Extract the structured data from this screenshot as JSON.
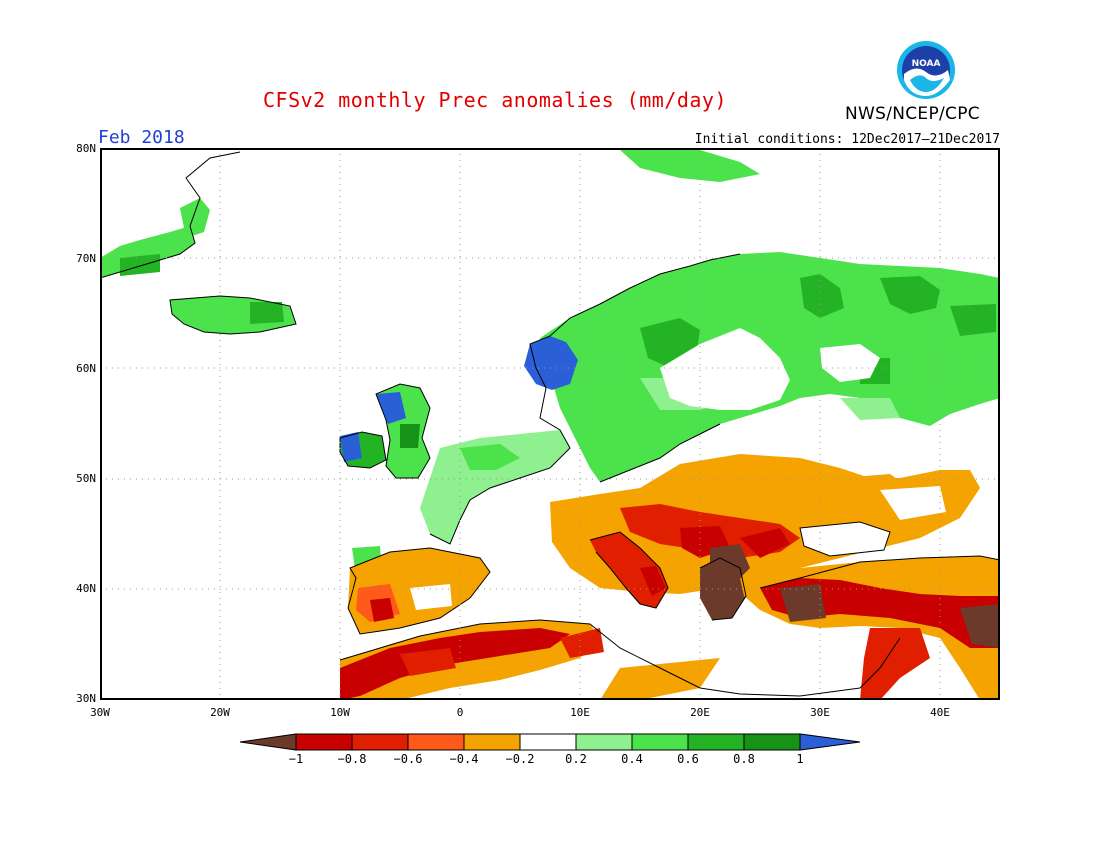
{
  "header": {
    "title": "CFSv2 monthly Prec anomalies (mm/day)",
    "month": "Feb 2018",
    "initial_conditions": "Initial conditions: 12Dec2017–21Dec2017",
    "agency": "NWS/NCEP/CPC",
    "logo_text": "NOAA"
  },
  "map": {
    "region": "Europe",
    "lon_range": [
      -30,
      45
    ],
    "lat_range": [
      30,
      80
    ],
    "lat_labels": [
      "80N",
      "70N",
      "60N",
      "50N",
      "40N",
      "30N"
    ],
    "lon_labels": [
      "30W",
      "20W",
      "10W",
      "0",
      "10E",
      "20E",
      "30E",
      "40E"
    ],
    "grid": "dotted",
    "anomaly_regions": [
      {
        "name": "Scandinavia and NW Russia",
        "category": "0.2 to 0.6",
        "color": "#4ce24c"
      },
      {
        "name": "Norway coast",
        "category": "above 1",
        "color": "#2a5fd8"
      },
      {
        "name": "Ireland and Scotland",
        "category": "0.8 to 1 / above 1",
        "color": "#169316"
      },
      {
        "name": "Iberia",
        "category": "-0.8 to -0.4",
        "color": "#f5a300"
      },
      {
        "name": "North Africa",
        "category": "-0.8 to -0.6",
        "color": "#c80000"
      },
      {
        "name": "Balkans and Greece",
        "category": "below -1",
        "color": "#6b3a2a"
      },
      {
        "name": "Turkey and Middle East",
        "category": "-1 to -0.4",
        "color": "#d42000"
      },
      {
        "name": "Eastern Europe",
        "category": "-0.4 to -0.2",
        "color": "#f5a300"
      }
    ]
  },
  "colorbar": {
    "labels": [
      "−1",
      "−0.8",
      "−0.6",
      "−0.4",
      "−0.2",
      "0.2",
      "0.4",
      "0.6",
      "0.8",
      "1"
    ],
    "colors": [
      "#6b3a2a",
      "#c80000",
      "#e01e00",
      "#ff5a1a",
      "#f5a300",
      "#ffffff",
      "#8ef08e",
      "#4ce24c",
      "#24b324",
      "#169316",
      "#2a5fd8"
    ]
  }
}
